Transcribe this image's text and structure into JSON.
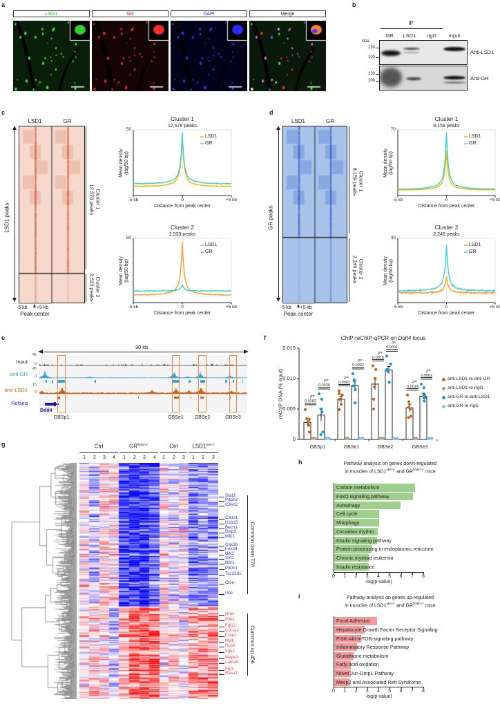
{
  "panel_a": {
    "label": "a",
    "channels": [
      {
        "name": "LSD1",
        "color": "#1cb01c"
      },
      {
        "name": "GR",
        "color": "#e81c1c"
      },
      {
        "name": "DAPI",
        "color": "#2424ff"
      },
      {
        "name": "Merge",
        "color": "#222222"
      }
    ]
  },
  "panel_b": {
    "label": "b",
    "ip": "IP",
    "lanes": [
      "GR",
      "LSD1",
      "rIgG",
      "Input"
    ],
    "kda": "kDa",
    "markers": [
      "130",
      "100"
    ],
    "blots": [
      "Anti-LSD1",
      "Anti-GR"
    ]
  },
  "panel_c": {
    "label": "c",
    "cols": [
      "LSD1",
      "GR"
    ],
    "axis": "LSD1 peaks",
    "clusters": [
      {
        "name": "Cluster 1",
        "peaks": "12,578 peaks"
      },
      {
        "name": "Cluster 2",
        "peaks": "2,533 peaks"
      }
    ],
    "left": "-5 kb",
    "right": "+5 kb",
    "center": "Peak center",
    "heat_color": "#c8461e"
  },
  "panel_d": {
    "label": "d",
    "cols": [
      "LSD1",
      "GR"
    ],
    "axis": "GR peaks",
    "clusters": [
      {
        "name": "Cluster 1",
        "peaks": "8,159 peaks"
      },
      {
        "name": "Cluster 2",
        "peaks": "2,249 peaks"
      }
    ],
    "left": "-5 kb",
    "right": "+5 kb",
    "center": "Peak center",
    "heat_color": "#2a5fc8"
  },
  "panel_e": {
    "label": "e",
    "span": "30 kb",
    "tracks": [
      {
        "name": "Input",
        "max": "45",
        "min": "0",
        "color": "#222222"
      },
      {
        "name": "anti-GR",
        "max": "45",
        "min": "0",
        "color": "#3aa6d8"
      },
      {
        "name": "anti-LSD1",
        "max": "15",
        "min": "0",
        "color": "#c8641a"
      }
    ],
    "refseq": "Refseq",
    "gene": "Ddit4",
    "sites": [
      "GBSp1",
      "GBSe1",
      "GBSe2",
      "GBSe3"
    ],
    "box_color": "#f5843c"
  },
  "panel_f": {
    "label": "f"
  },
  "panel_g": {
    "label": "g",
    "groups": [
      {
        "name": "Ctrl",
        "sup": "",
        "cols": [
          "1",
          "2",
          "3",
          "4"
        ]
      },
      {
        "name": "GR",
        "sup": "fl/skm-/-",
        "cols": [
          "1",
          "2",
          "3",
          "4"
        ]
      },
      {
        "name": "Ctrl",
        "sup": "",
        "cols": [
          "1",
          "2",
          "3"
        ]
      },
      {
        "name": "LSD1",
        "sup": "skm-/-",
        "cols": [
          "1",
          "2",
          "3"
        ]
      }
    ],
    "down_label": "Common down 778",
    "up_label": "Common up 456",
    "down_genes": [
      "Stat3",
      "Pik3r3",
      "Cited2",
      "Calm1",
      "Usp15",
      "Becn1",
      "Bnip3",
      "Mfn1",
      "Gsk3b",
      "Foxo4",
      "Ulk2",
      "Sirt1",
      "Nbr1",
      "Pik3r1",
      "Tsc22d1",
      "Ctse",
      "Ubc"
    ],
    "up_genes": [
      "Hras",
      "Pak1",
      "Fgf11",
      "Col1a1",
      "Chad",
      "Mylk",
      "Rps6",
      "Itga1",
      "Mapk3",
      "Lama4",
      "Fgf1",
      "Rasa1"
    ],
    "down_color": "#2a3ad8",
    "up_color": "#f04848"
  },
  "panel_h": {
    "label": "h"
  },
  "panel_i": {
    "label": "i"
  },
  "chart_data": [
    {
      "id": "c1",
      "type": "line",
      "title": "Cluster 1",
      "subtitle": "12,578 peaks",
      "xlabel": "Distance from peak center",
      "ylabel": "Mean density (tag/50 bp)",
      "xticks": [
        "-5 kb",
        "0",
        "+5 kb"
      ],
      "xlim": [
        -5,
        5
      ],
      "ylim": [
        0,
        50
      ],
      "ytick": "50",
      "legend": "top-right",
      "series": [
        {
          "name": "LSD1",
          "color": "#f5b800",
          "peak": 44,
          "baseline": 7
        },
        {
          "name": "GR",
          "color": "#40d0d0",
          "peak": 48,
          "baseline": 9
        }
      ]
    },
    {
      "id": "c2",
      "type": "line",
      "title": "Cluster 2",
      "subtitle": "2,533 peaks",
      "xlabel": "Distance from peak center",
      "ylabel": "Mean density (tag/50 bp)",
      "xticks": [
        "-5 kb",
        "0",
        "+5 kb"
      ],
      "xlim": [
        -5,
        5
      ],
      "ylim": [
        0,
        50
      ],
      "ytick": "50",
      "legend": "top-right",
      "series": [
        {
          "name": "LSD1",
          "color": "#f5a030",
          "peak": 47,
          "baseline": 6
        },
        {
          "name": "GR",
          "color": "#40d0d0",
          "peak": 14,
          "baseline": 9
        }
      ]
    },
    {
      "id": "d1",
      "type": "line",
      "title": "Cluster 1",
      "subtitle": "8,159 peaks",
      "xlabel": "Distance from peak center",
      "ylabel": "Mean density (tag/50 bp)",
      "xticks": [
        "-5 kb",
        "0",
        "+5 kb"
      ],
      "xlim": [
        -5,
        5
      ],
      "ylim": [
        0,
        70
      ],
      "ytick": "70",
      "legend": "top-right",
      "series": [
        {
          "name": "LSD1",
          "color": "#f5b800",
          "peak": 48,
          "baseline": 6
        },
        {
          "name": "GR",
          "color": "#40d0d0",
          "peak": 67,
          "baseline": 7
        }
      ]
    },
    {
      "id": "d2",
      "type": "line",
      "title": "Cluster 2",
      "subtitle": "2,249 peaks",
      "xlabel": "Distance from peak center",
      "ylabel": "Mean density (tag/50 bp)",
      "xticks": [
        "-5 kb",
        "0",
        "+5 kb"
      ],
      "xlim": [
        -5,
        5
      ],
      "ylim": [
        0,
        30
      ],
      "ytick": "30",
      "legend": "top-right",
      "series": [
        {
          "name": "LSD1",
          "color": "#f5a030",
          "peak": 12,
          "baseline": 4.5
        },
        {
          "name": "GR",
          "color": "#40d0d0",
          "peak": 27,
          "baseline": 5.5
        }
      ]
    },
    {
      "id": "f",
      "type": "bar",
      "title": "ChIP-reChIP-qPCR on Ddit4 locus",
      "title_prefix": "ChIP-reChIP-qPCR on ",
      "title_italic": "Ddit4",
      "title_suffix": " locus",
      "ylabel": "reChIP DNA (% input)",
      "ylim": [
        0,
        0.015
      ],
      "yticks": [
        "0",
        "0.005",
        "0.010",
        "0.015"
      ],
      "categories": [
        "GBSp1",
        "GBSe1",
        "GBSe2",
        "GBSe3"
      ],
      "legend": "right",
      "series": [
        {
          "name": "anti-LSD1-re-anti-GR",
          "color": "#c8641a",
          "bar": true,
          "means": [
            0.0028,
            0.0066,
            0.0091,
            0.0052
          ],
          "sem": [
            0.0005,
            0.0005,
            0.0009,
            0.0006
          ],
          "points": [
            [
              0.0049,
              0.0034,
              0.0033,
              0.0028,
              0.0023,
              0.0012
            ],
            [
              0.008,
              0.0075,
              0.0073,
              0.0066,
              0.0058,
              0.0049
            ],
            [
              0.0121,
              0.0115,
              0.01,
              0.0086,
              0.0066,
              0.005
            ],
            [
              0.0073,
              0.0062,
              0.0053,
              0.005,
              0.0038,
              0.0036
            ]
          ]
        },
        {
          "name": "anti-LSD1-re-rIgG",
          "color": "#b89a82",
          "bar": false,
          "means": [
            0,
            0,
            0,
            0
          ],
          "points": [
            [
              0,
              0,
              0,
              0,
              0,
              0
            ],
            [
              0,
              0,
              0,
              0,
              0,
              0
            ],
            [
              0,
              0,
              0,
              0,
              0,
              0
            ],
            [
              0,
              0,
              0,
              0,
              0,
              0
            ]
          ]
        },
        {
          "name": "anti-GR-re-anti-LSD1",
          "color": "#1a96c8",
          "bar": true,
          "means": [
            0.004,
            0.0089,
            0.0114,
            0.0071
          ],
          "sem": [
            0.001,
            0.0007,
            0.0006,
            0.0005
          ],
          "points": [
            [
              0.0075,
              0.0066,
              0.005,
              0.0045,
              0.0012,
              0.0008
            ],
            [
              0.0108,
              0.0098,
              0.0096,
              0.0088,
              0.0082,
              0.006
            ],
            [
              0.0137,
              0.0124,
              0.0115,
              0.0113,
              0.0112,
              0.0094
            ],
            [
              0.0091,
              0.0085,
              0.0073,
              0.0071,
              0.0068,
              0.0063
            ]
          ]
        },
        {
          "name": "anti-GR-re-rIgG",
          "color": "#7cc4e4",
          "bar": false,
          "means": [
            0,
            0,
            0,
            0
          ],
          "points": [
            [
              0,
              0,
              0,
              0,
              0,
              0
            ],
            [
              0,
              0,
              0,
              0,
              0,
              0
            ],
            [
              0,
              0,
              0,
              0,
              0,
              0
            ],
            [
              0,
              0,
              0,
              0,
              0,
              0
            ]
          ]
        }
      ],
      "pvalues": [
        {
          "cat": 0,
          "side": "LSD1",
          "prefix": "p=",
          "value": "0.0282"
        },
        {
          "cat": 0,
          "side": "GR",
          "prefix": "p=",
          "value": "0.0336"
        },
        {
          "cat": 1,
          "side": "LSD1",
          "prefix": "p=",
          "value": "0.0002"
        },
        {
          "cat": 1,
          "side": "GR",
          "prefix": "p=",
          "value": "0.0002"
        },
        {
          "cat": 2,
          "side": "LSD1",
          "prefix": "p=",
          "value": "0.0016"
        },
        {
          "cat": 2,
          "side": "GR",
          "prefix": "p<",
          "value": "0.0001"
        },
        {
          "cat": 3,
          "side": "LSD1",
          "prefix": "p=",
          "value": "0.0014"
        },
        {
          "cat": 3,
          "side": "GR",
          "prefix": "p=",
          "value": "0.0002"
        }
      ]
    },
    {
      "id": "h",
      "type": "bar",
      "orientation": "horizontal",
      "title_line1": "Pathway analysis on genes down-regulated",
      "title_line2_a": "in muscles of LSD1",
      "sup_a": "skm-/-",
      "title_line2_b": " and GR",
      "sup_b": "fl/skm-/-",
      "title_line2_c": " mice",
      "xlabel": "-log(p-value)",
      "xlim": [
        0,
        8
      ],
      "xticks": [
        "0",
        "1",
        "2",
        "3",
        "4",
        "5",
        "6",
        "7",
        "8"
      ],
      "color": "#9fcf8c",
      "categories": [
        "Carbon metabolism",
        "FoxO signaling pathway",
        "Autophagy",
        "Cell cycle",
        "Mitophagy",
        "Circadian rhythm",
        "Insulin signaling pathway",
        "Protein processing in endoplasmic reticulum",
        "Chronic myeloid leukemia",
        "Insulin resistance"
      ],
      "values": [
        7.2,
        7.0,
        5.9,
        4.0,
        4.0,
        3.9,
        3.8,
        3.3,
        3.1,
        3.1
      ]
    },
    {
      "id": "i",
      "type": "bar",
      "orientation": "horizontal",
      "title_line1": "Pathway analysis on genes up-regulated",
      "title_line2_a": "in muscles of LSD1",
      "sup_a": "skm-/-",
      "title_line2_b": " and GR",
      "sup_b": "fl/skm-/-",
      "title_line2_c": " mice",
      "xlabel": "-log(p-value)",
      "xlim": [
        0,
        8
      ],
      "xticks": [
        "0",
        "1",
        "2",
        "3",
        "4",
        "5",
        "6",
        "7",
        "8"
      ],
      "color": "#f49a9a",
      "categories": [
        "Focal Adhesion",
        "Hepatocyte Growth Factor Receptor Signaling",
        "PI3K-Akt-mTOR-signaling pathway",
        "Inflammatory Response Pathway",
        "Glutathione metabolism",
        "Fatty acid oxidation",
        "Novel Jun-Dmp1 Pathway",
        "Mecp2 and Associated Rett Syndrome"
      ],
      "values": [
        3.8,
        2.7,
        2.4,
        2.05,
        1.75,
        1.5,
        1.45,
        1.35
      ]
    }
  ]
}
